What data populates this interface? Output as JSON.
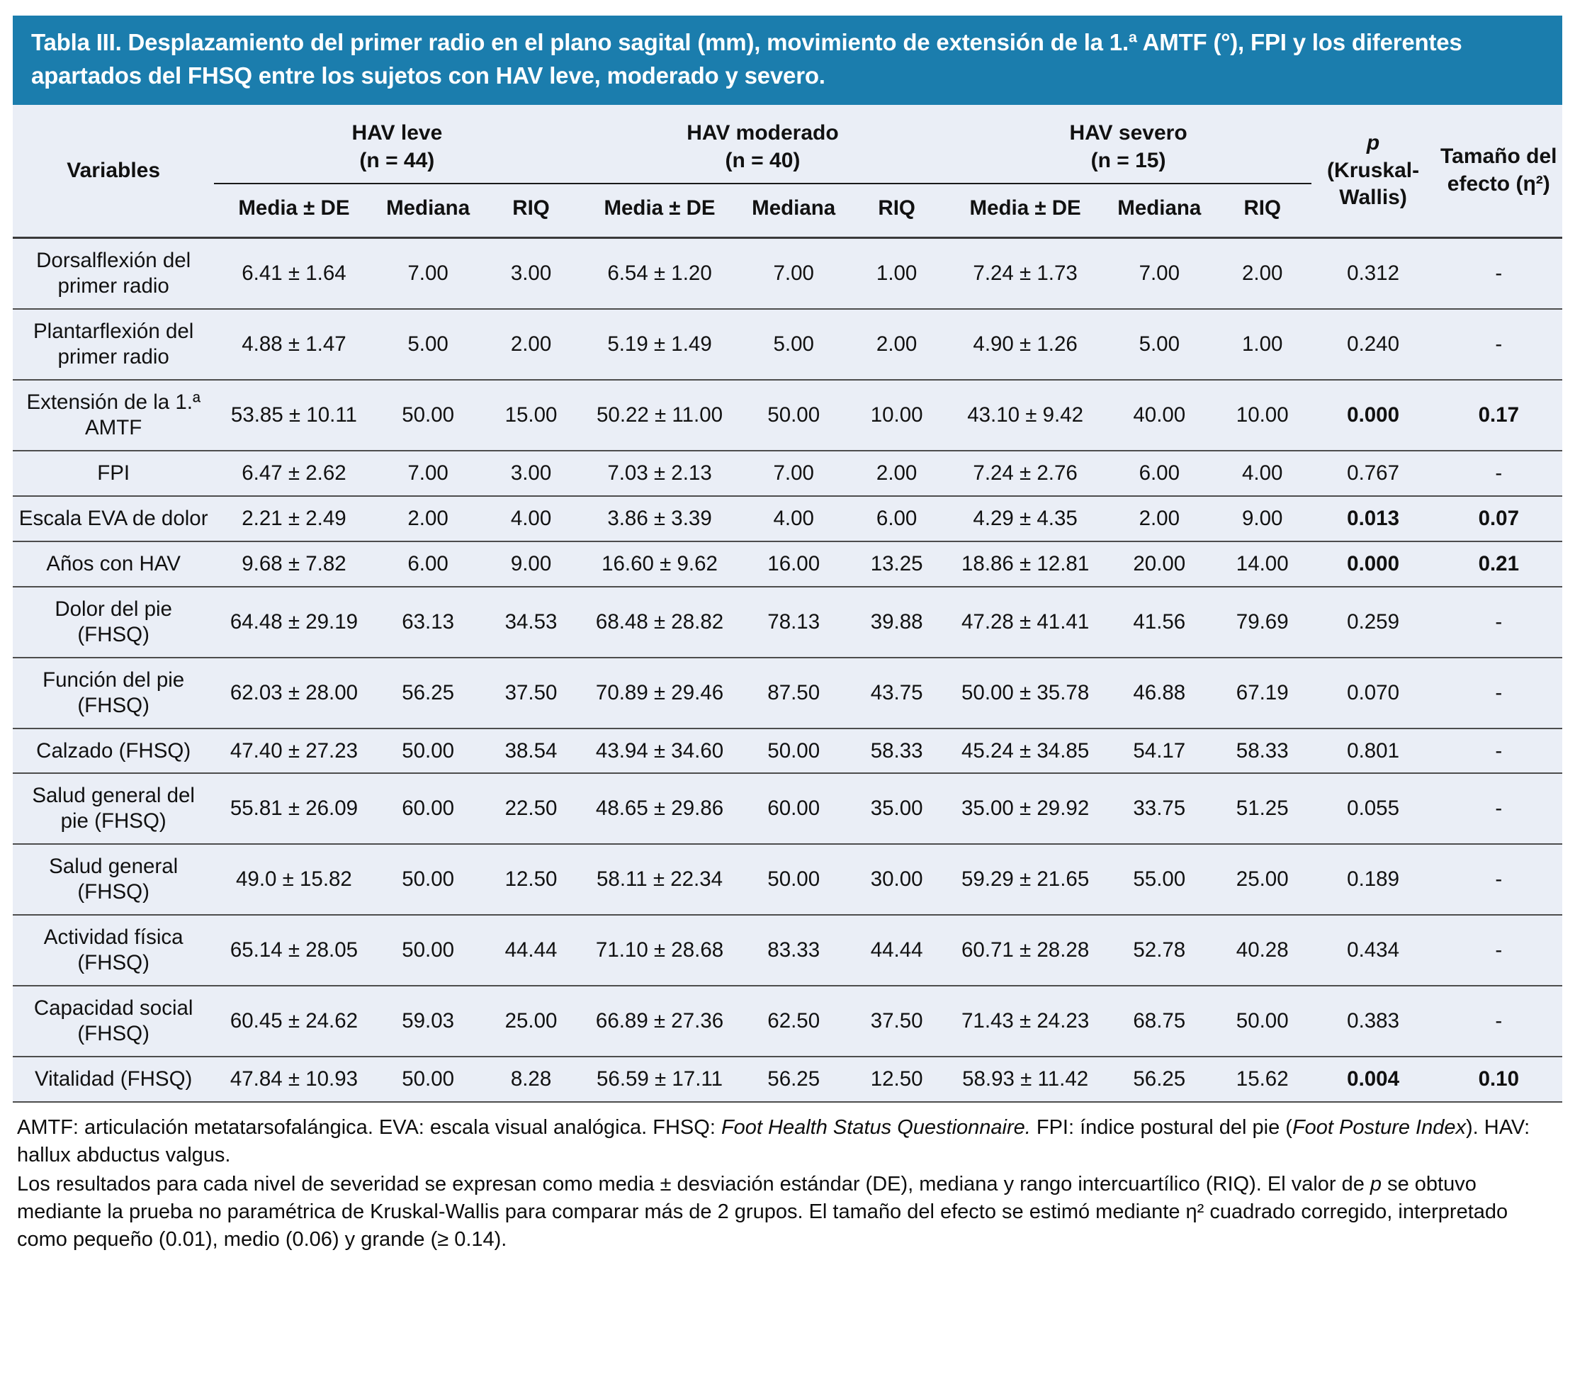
{
  "title": "Tabla III. Desplazamiento del primer radio en el plano sagital (mm), movimiento de extensión de la 1.ª AMTF (°), FPI y los diferentes apartados del FHSQ entre los sujetos con HAV leve, moderado y severo.",
  "colors": {
    "header_blue": "#1b7dad",
    "row_bg": "#eaeef6",
    "rule": "#4d4d4d"
  },
  "header": {
    "variables_label": "Variables",
    "groups": [
      {
        "name": "HAV leve",
        "n": "(n = 44)"
      },
      {
        "name": "HAV moderado",
        "n": "(n = 40)"
      },
      {
        "name": "HAV severo",
        "n": "(n = 15)"
      }
    ],
    "subheaders": [
      "Media ± DE",
      "Mediana",
      "RIQ"
    ],
    "p_symbol": "p",
    "p_rest": "(Kruskal-Wallis)",
    "effect_label": "Tamaño del efecto (η²)"
  },
  "rows": [
    {
      "variable": "Dorsalflexión del primer radio",
      "values": [
        "6.41 ± 1.64",
        "7.00",
        "3.00",
        "6.54 ± 1.20",
        "7.00",
        "1.00",
        "7.24 ± 1.73",
        "7.00",
        "2.00"
      ],
      "p": "0.312",
      "effect": "-",
      "bold": false
    },
    {
      "variable": "Plantarflexión del primer radio",
      "values": [
        "4.88 ± 1.47",
        "5.00",
        "2.00",
        "5.19 ± 1.49",
        "5.00",
        "2.00",
        "4.90 ± 1.26",
        "5.00",
        "1.00"
      ],
      "p": "0.240",
      "effect": "-",
      "bold": false
    },
    {
      "variable": "Extensión de la 1.ª AMTF",
      "values": [
        "53.85 ± 10.11",
        "50.00",
        "15.00",
        "50.22 ± 11.00",
        "50.00",
        "10.00",
        "43.10 ± 9.42",
        "40.00",
        "10.00"
      ],
      "p": "0.000",
      "effect": "0.17",
      "bold": true
    },
    {
      "variable": "FPI",
      "values": [
        "6.47 ± 2.62",
        "7.00",
        "3.00",
        "7.03 ± 2.13",
        "7.00",
        "2.00",
        "7.24 ± 2.76",
        "6.00",
        "4.00"
      ],
      "p": "0.767",
      "effect": "-",
      "bold": false
    },
    {
      "variable": "Escala EVA de dolor",
      "values": [
        "2.21 ± 2.49",
        "2.00",
        "4.00",
        "3.86 ± 3.39",
        "4.00",
        "6.00",
        "4.29 ± 4.35",
        "2.00",
        "9.00"
      ],
      "p": "0.013",
      "effect": "0.07",
      "bold": true
    },
    {
      "variable": "Años con HAV",
      "values": [
        "9.68 ± 7.82",
        "6.00",
        "9.00",
        "16.60 ± 9.62",
        "16.00",
        "13.25",
        "18.86 ± 12.81",
        "20.00",
        "14.00"
      ],
      "p": "0.000",
      "effect": "0.21",
      "bold": true
    },
    {
      "variable": "Dolor del pie (FHSQ)",
      "values": [
        "64.48 ± 29.19",
        "63.13",
        "34.53",
        "68.48 ± 28.82",
        "78.13",
        "39.88",
        "47.28 ± 41.41",
        "41.56",
        "79.69"
      ],
      "p": "0.259",
      "effect": "-",
      "bold": false
    },
    {
      "variable": "Función del pie (FHSQ)",
      "values": [
        "62.03 ± 28.00",
        "56.25",
        "37.50",
        "70.89 ± 29.46",
        "87.50",
        "43.75",
        "50.00 ± 35.78",
        "46.88",
        "67.19"
      ],
      "p": "0.070",
      "effect": "-",
      "bold": false
    },
    {
      "variable": "Calzado (FHSQ)",
      "values": [
        "47.40 ± 27.23",
        "50.00",
        "38.54",
        "43.94 ± 34.60",
        "50.00",
        "58.33",
        "45.24 ± 34.85",
        "54.17",
        "58.33"
      ],
      "p": "0.801",
      "effect": "-",
      "bold": false
    },
    {
      "variable": "Salud general del pie (FHSQ)",
      "values": [
        "55.81 ± 26.09",
        "60.00",
        "22.50",
        "48.65 ± 29.86",
        "60.00",
        "35.00",
        "35.00 ± 29.92",
        "33.75",
        "51.25"
      ],
      "p": "0.055",
      "effect": "-",
      "bold": false
    },
    {
      "variable": "Salud general (FHSQ)",
      "values": [
        "49.0 ± 15.82",
        "50.00",
        "12.50",
        "58.11 ± 22.34",
        "50.00",
        "30.00",
        "59.29 ± 21.65",
        "55.00",
        "25.00"
      ],
      "p": "0.189",
      "effect": "-",
      "bold": false
    },
    {
      "variable": "Actividad física (FHSQ)",
      "values": [
        "65.14 ± 28.05",
        "50.00",
        "44.44",
        "71.10 ± 28.68",
        "83.33",
        "44.44",
        "60.71 ± 28.28",
        "52.78",
        "40.28"
      ],
      "p": "0.434",
      "effect": "-",
      "bold": false
    },
    {
      "variable": "Capacidad social (FHSQ)",
      "values": [
        "60.45 ± 24.62",
        "59.03",
        "25.00",
        "66.89 ± 27.36",
        "62.50",
        "37.50",
        "71.43 ± 24.23",
        "68.75",
        "50.00"
      ],
      "p": "0.383",
      "effect": "-",
      "bold": false
    },
    {
      "variable": "Vitalidad (FHSQ)",
      "values": [
        "47.84 ± 10.93",
        "50.00",
        "8.28",
        "56.59 ± 17.11",
        "56.25",
        "12.50",
        "58.93 ± 11.42",
        "56.25",
        "15.62"
      ],
      "p": "0.004",
      "effect": "0.10",
      "bold": true
    }
  ],
  "footnotes": [
    {
      "segments": [
        {
          "t": "AMTF: articulación metatarsofalángica. EVA: escala visual analógica. FHSQ: ",
          "i": false
        },
        {
          "t": "Foot Health Status Questionnaire.",
          "i": true
        },
        {
          "t": " FPI: índice postural del pie (",
          "i": false
        },
        {
          "t": "Foot Posture Index",
          "i": true
        },
        {
          "t": "). HAV: hallux abductus valgus.",
          "i": false
        }
      ]
    },
    {
      "segments": [
        {
          "t": "Los resultados para cada nivel de severidad se expresan como media ± desviación estándar (DE), mediana y rango intercuartílico (RIQ). El valor de ",
          "i": false
        },
        {
          "t": "p",
          "i": true
        },
        {
          "t": " se obtuvo mediante la prueba no paramétrica de Kruskal-Wallis para comparar más de 2 grupos. El tamaño del efecto se estimó mediante η² cuadrado corregido, interpretado como pequeño (0.01), medio (0.06) y grande (≥ 0.14).",
          "i": false
        }
      ]
    }
  ]
}
